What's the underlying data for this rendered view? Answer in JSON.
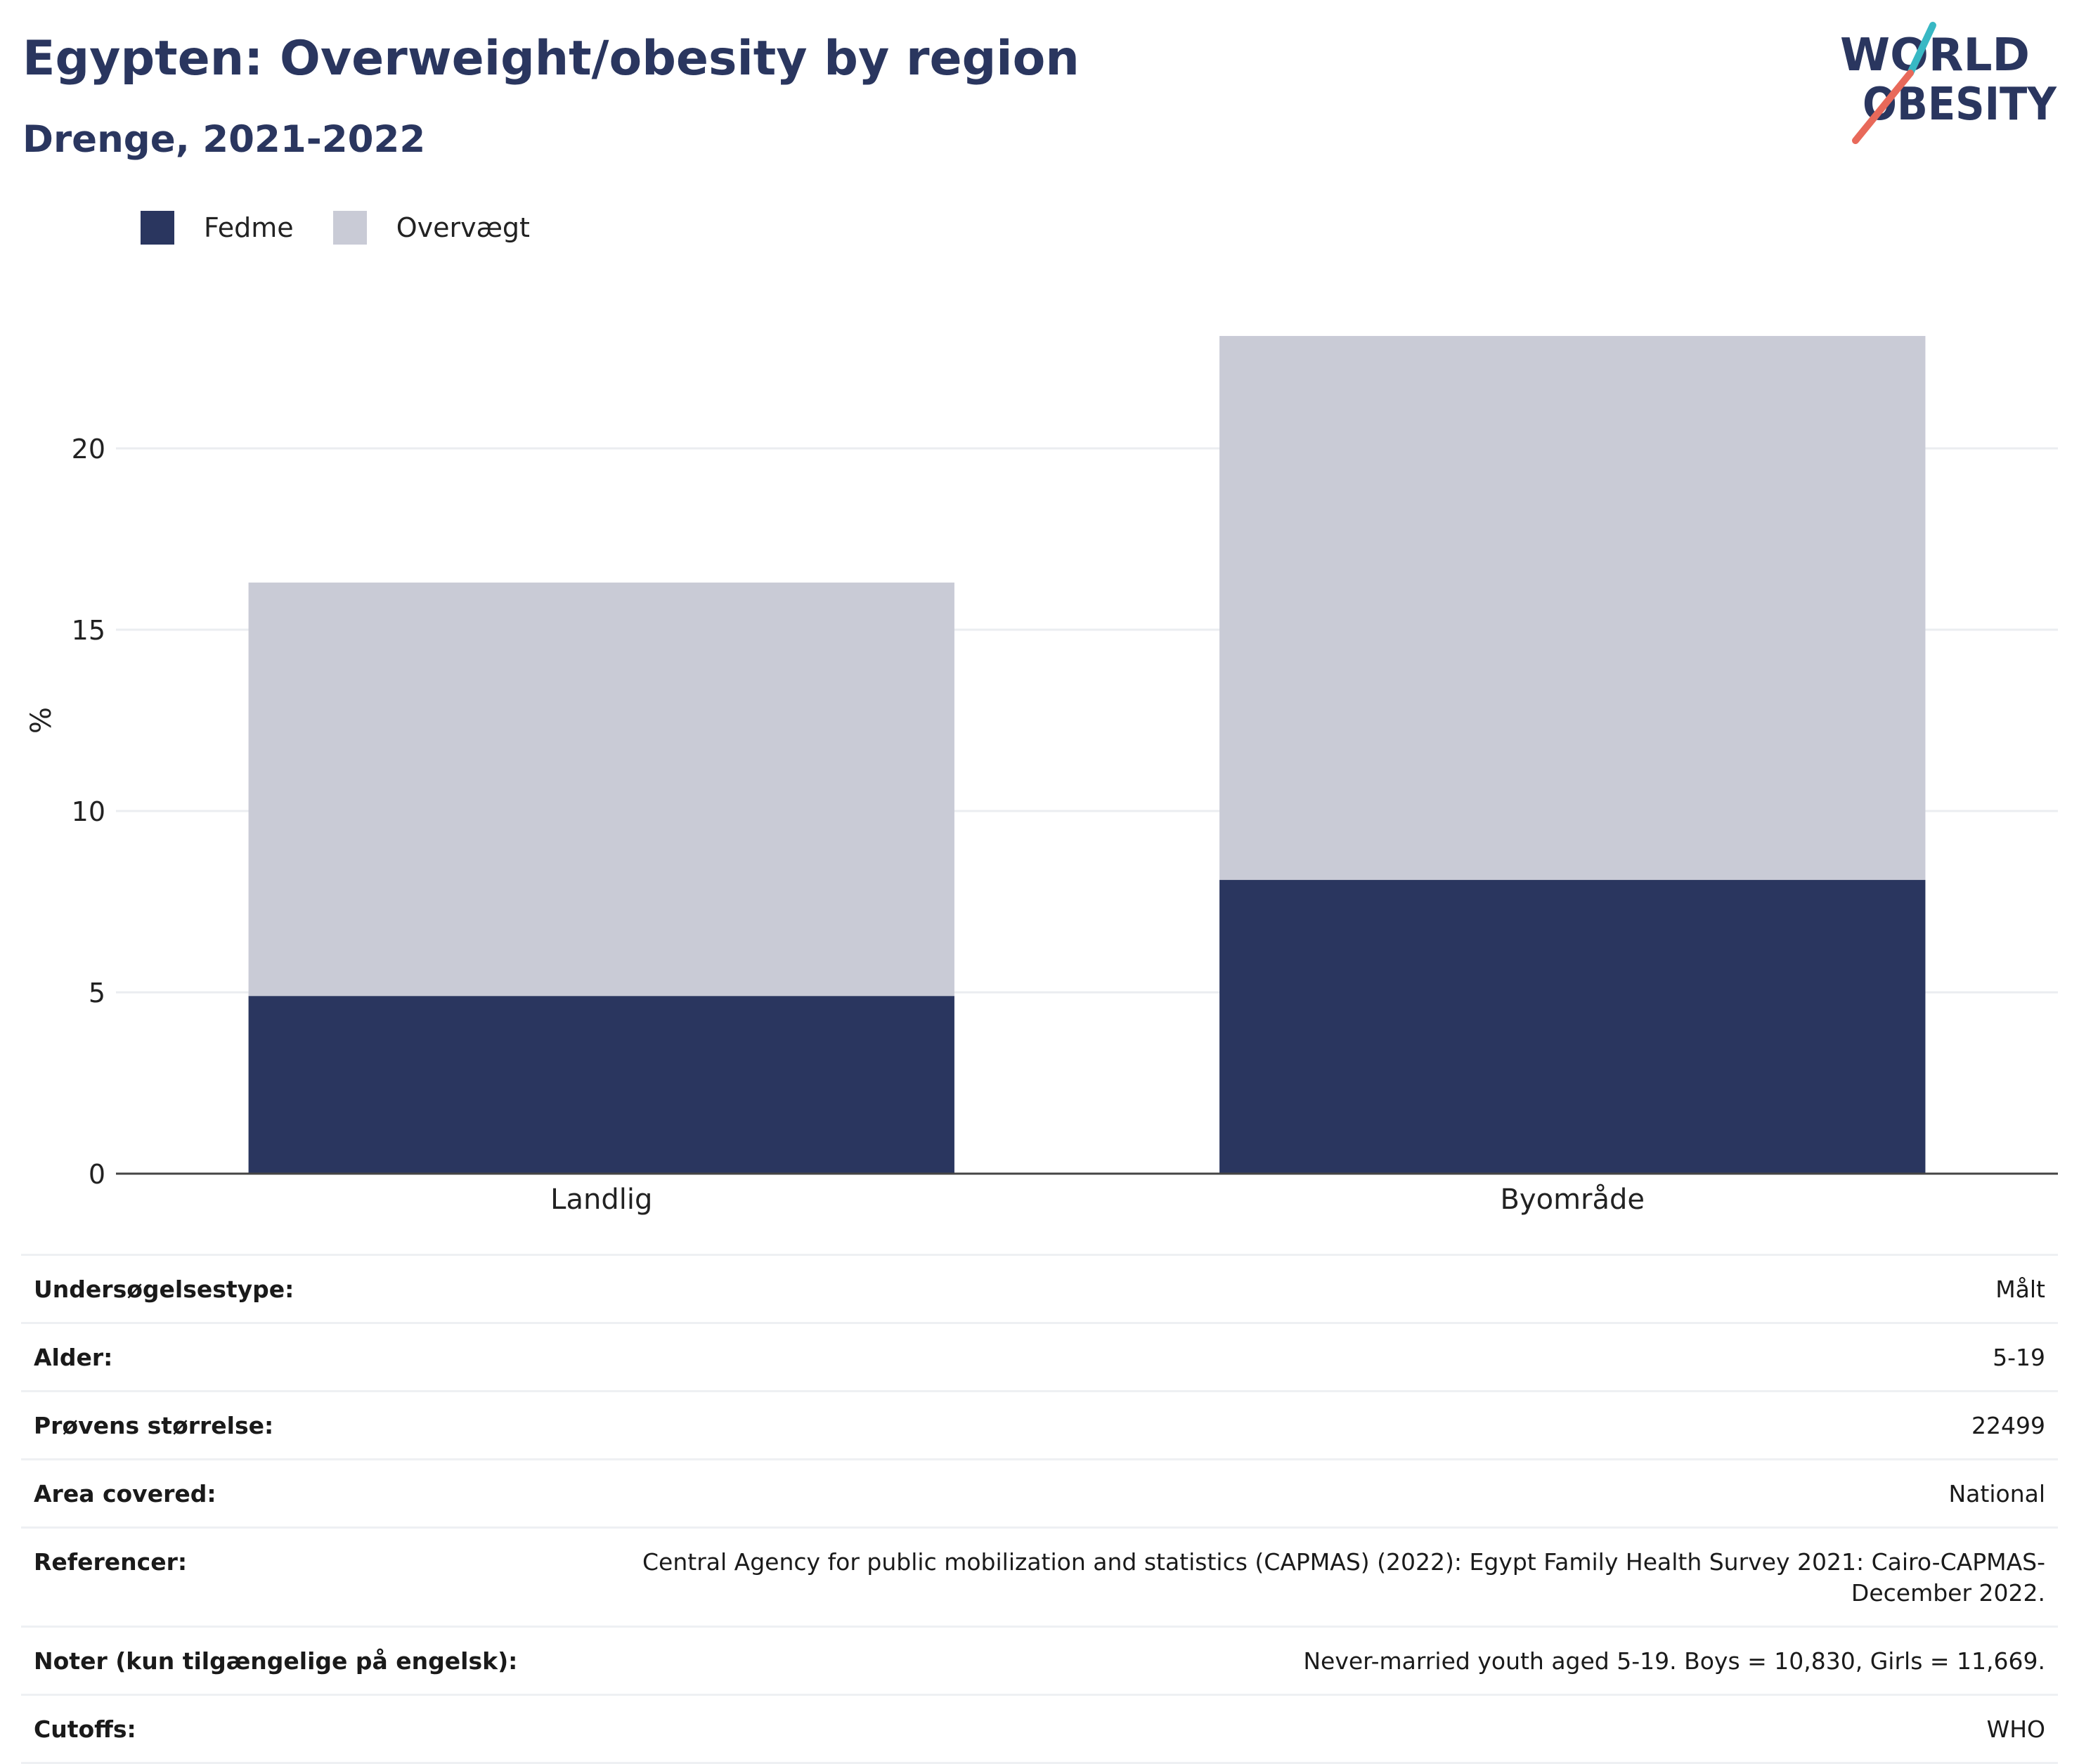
{
  "header": {
    "title": "Egypten: Overweight/obesity by region",
    "subtitle": "Drenge, 2021-2022"
  },
  "logo": {
    "line1": "WORLD",
    "line2": "OBESITY",
    "text_color": "#2a365f",
    "slash_colors": [
      "#38b8c4",
      "#e8695a"
    ]
  },
  "legend": [
    {
      "label": "Fedme",
      "color": "#2a365f"
    },
    {
      "label": "Overvægt",
      "color": "#c9cbd6"
    }
  ],
  "chart_data": {
    "type": "bar",
    "stacked": true,
    "title": "",
    "xlabel": "",
    "ylabel": "%",
    "categories": [
      "Landlig",
      "Byområde"
    ],
    "series": [
      {
        "name": "Fedme",
        "color": "#2a365f",
        "values": [
          4.9,
          8.1
        ]
      },
      {
        "name": "Overvægt",
        "color": "#c9cbd6",
        "values": [
          11.4,
          15.0
        ]
      }
    ],
    "ylim": [
      0,
      25
    ],
    "yticks": [
      0,
      5,
      10,
      15,
      20
    ],
    "grid": true,
    "legend_position": "top-left"
  },
  "info": [
    {
      "label": "Undersøgelsestype:",
      "value": "Målt"
    },
    {
      "label": "Alder:",
      "value": "5-19"
    },
    {
      "label": "Prøvens størrelse:",
      "value": "22499"
    },
    {
      "label": "Area covered:",
      "value": "National"
    },
    {
      "label": "Referencer:",
      "value": "Central Agency for public mobilization and statistics (CAPMAS) (2022): Egypt Family Health Survey 2021: Cairo-CAPMAS-December 2022."
    },
    {
      "label": "Noter (kun tilgængelige på engelsk):",
      "value": "Never-married youth aged 5-19. Boys = 10,830, Girls = 11,669."
    },
    {
      "label": "Cutoffs:",
      "value": "WHO"
    }
  ]
}
